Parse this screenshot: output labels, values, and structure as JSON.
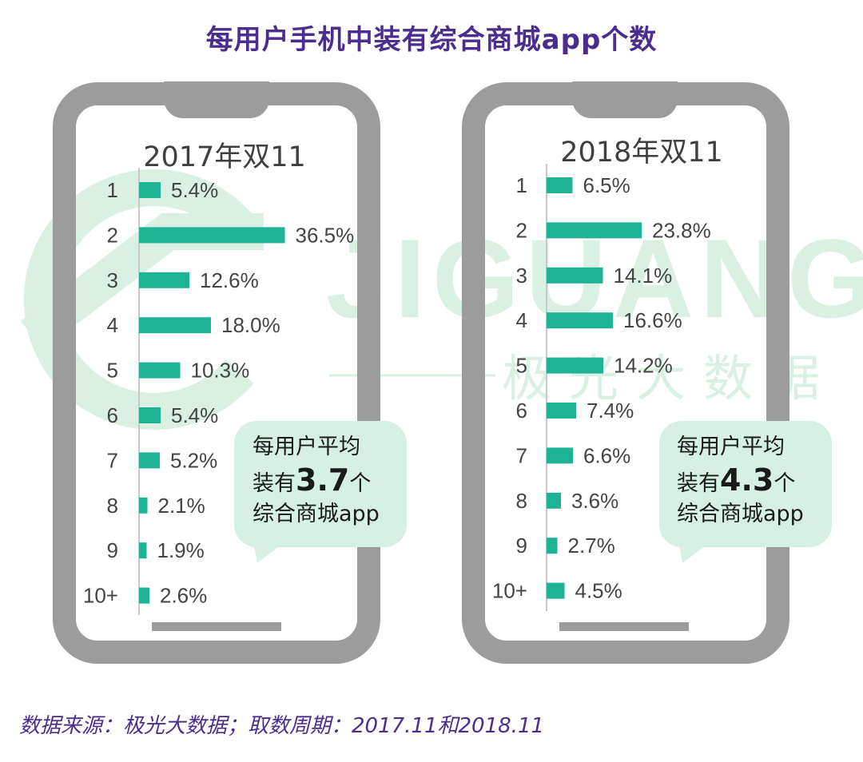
{
  "title": "每用户手机中装有综合商城app个数",
  "source": "数据来源：极光大数据；取数周期：2017.11和2018.11",
  "watermark": {
    "brand": "JIGUANG",
    "brand_cn": "极光大数据"
  },
  "colors": {
    "bar": "#1db394",
    "title": "#4b2d8f",
    "phone": "#9c9c9c",
    "bubble": "#d6f0e4",
    "watermark": "#d9f0e3"
  },
  "bubbles": [
    {
      "line1": "每用户平均",
      "prefix": "装有",
      "value": "3.7",
      "unit": "个",
      "line3": "综合商城app"
    },
    {
      "line1": "每用户平均",
      "prefix": "装有",
      "value": "4.3",
      "unit": "个",
      "line3": "综合商城app"
    }
  ],
  "chart_data": [
    {
      "type": "bar",
      "orientation": "horizontal",
      "title": "2017年双11",
      "categories": [
        "1",
        "2",
        "3",
        "4",
        "5",
        "6",
        "7",
        "8",
        "9",
        "10+"
      ],
      "values": [
        5.4,
        36.5,
        12.6,
        18.0,
        10.3,
        5.4,
        5.2,
        2.1,
        1.9,
        2.6
      ],
      "labels": [
        "5.4%",
        "36.5%",
        "12.6%",
        "18.0%",
        "10.3%",
        "5.4%",
        "5.2%",
        "2.1%",
        "1.9%",
        "2.6%"
      ],
      "unit": "%"
    },
    {
      "type": "bar",
      "orientation": "horizontal",
      "title": "2018年双11",
      "categories": [
        "1",
        "2",
        "3",
        "4",
        "5",
        "6",
        "7",
        "8",
        "9",
        "10+"
      ],
      "values": [
        6.5,
        23.8,
        14.1,
        16.6,
        14.2,
        7.4,
        6.6,
        3.6,
        2.7,
        4.5
      ],
      "labels": [
        "6.5%",
        "23.8%",
        "14.1%",
        "16.6%",
        "14.2%",
        "7.4%",
        "6.6%",
        "3.6%",
        "2.7%",
        "4.5%"
      ],
      "unit": "%"
    }
  ]
}
